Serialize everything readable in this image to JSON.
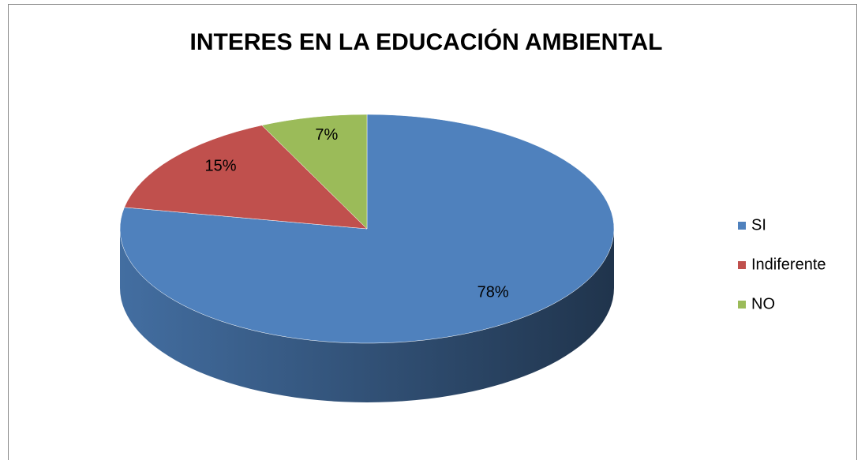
{
  "chart_data": {
    "type": "pie",
    "title": "INTERES EN LA EDUCACIÓN AMBIENTAL",
    "categories": [
      "SI",
      "Indiferente",
      "NO"
    ],
    "values": [
      78,
      15,
      7
    ],
    "value_labels": [
      "78%",
      "15%",
      "7%"
    ],
    "colors": [
      "#4f81bd",
      "#c0504d",
      "#9bbb59"
    ],
    "legend": "right"
  }
}
